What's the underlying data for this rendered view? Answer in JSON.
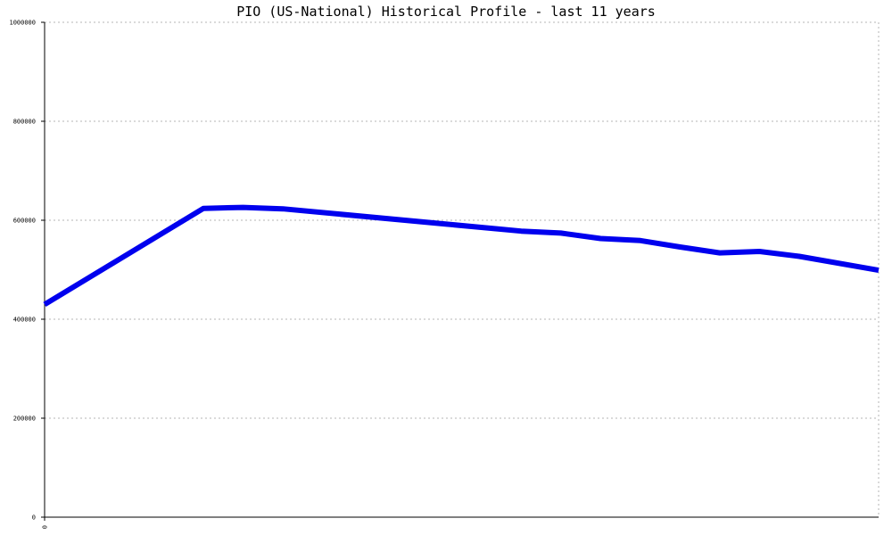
{
  "chart_data": {
    "type": "line",
    "title": "PIO (US-National) Historical Profile - last 11 years",
    "xlabel": "",
    "ylabel": "",
    "x_tick_labels": [
      "0"
    ],
    "y_tick_labels": [
      "0",
      "200000",
      "400000",
      "600000",
      "800000",
      "1000000"
    ],
    "yticks": [
      0,
      200000,
      400000,
      600000,
      800000,
      1000000
    ],
    "ylim": [
      0,
      1000000
    ],
    "xlim": [
      0,
      21
    ],
    "grid": true,
    "legend": "none",
    "series": [
      {
        "color": "#0000ee",
        "x": [
          0,
          4,
          5,
          6,
          12,
          13,
          14,
          15,
          16,
          17,
          18,
          19,
          21
        ],
        "values": [
          430000,
          624000,
          626000,
          623000,
          578000,
          574000,
          563000,
          559000,
          546000,
          534000,
          537000,
          527000,
          499000
        ]
      }
    ]
  }
}
